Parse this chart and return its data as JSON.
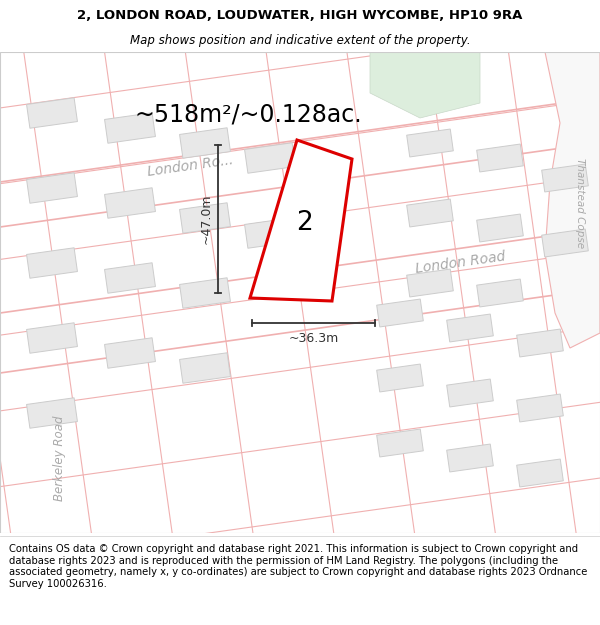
{
  "title_line1": "2, LONDON ROAD, LOUDWATER, HIGH WYCOMBE, HP10 9RA",
  "title_line2": "Map shows position and indicative extent of the property.",
  "area_text": "~518m²/~0.128ac.",
  "dim_height": "~47.0m",
  "dim_width": "~36.3m",
  "property_number": "2",
  "footer_text": "Contains OS data © Crown copyright and database right 2021. This information is subject to Crown copyright and database rights 2023 and is reproduced with the permission of HM Land Registry. The polygons (including the associated geometry, namely x, y co-ordinates) are subject to Crown copyright and database rights 2023 Ordnance Survey 100026316.",
  "map_bg": "#ffffff",
  "street_line_color": "#f0b0b0",
  "building_fill": "#e8e8e8",
  "building_edge": "#cccccc",
  "property_edge": "#dd0000",
  "road_band_color": "#f5f0f0",
  "road_band_edge": "#e0c0c0",
  "green_fill": "#ddeedd",
  "title_fontsize": 9.5,
  "subtitle_fontsize": 8.5,
  "area_fontsize": 17,
  "dim_fontsize": 9,
  "road_fontsize": 10,
  "footer_fontsize": 7.2,
  "title_color": "#000000",
  "road_label_color": "#aaaaaa",
  "dim_color": "#333333"
}
